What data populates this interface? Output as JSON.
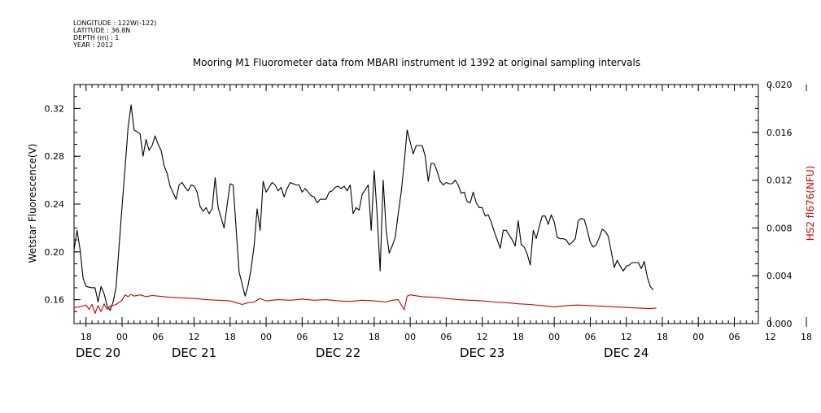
{
  "meta_lines": [
    "LONGITUDE : 122W(-122)",
    "LATITUDE : 36.8N",
    "DEPTH (m) : 1",
    "YEAR : 2012"
  ],
  "chart_data": {
    "type": "line",
    "title": "Mooring M1 Fluorometer data from MBARI instrument id 1392 at original sampling intervals",
    "xlabel": "",
    "x_range_hours": [
      -8,
      106
    ],
    "x_ticks": [
      {
        "h": -6,
        "label": "18"
      },
      {
        "h": 0,
        "label": "00"
      },
      {
        "h": 6,
        "label": "06"
      },
      {
        "h": 12,
        "label": "12"
      },
      {
        "h": 18,
        "label": "18"
      },
      {
        "h": 24,
        "label": "00"
      },
      {
        "h": 30,
        "label": "06"
      },
      {
        "h": 36,
        "label": "12"
      },
      {
        "h": 42,
        "label": "18"
      },
      {
        "h": 48,
        "label": "00"
      },
      {
        "h": 54,
        "label": "06"
      },
      {
        "h": 60,
        "label": "12"
      },
      {
        "h": 66,
        "label": "18"
      },
      {
        "h": 72,
        "label": "00"
      },
      {
        "h": 78,
        "label": "06"
      },
      {
        "h": 84,
        "label": "12"
      },
      {
        "h": 90,
        "label": "18"
      },
      {
        "h": 96,
        "label": "00"
      },
      {
        "h": 102,
        "label": "06"
      },
      {
        "h": 108,
        "label": "12"
      },
      {
        "h": 114,
        "label": "18"
      }
    ],
    "date_labels": [
      {
        "h": -4,
        "label": "DEC 20"
      },
      {
        "h": 12,
        "label": "DEC 21"
      },
      {
        "h": 36,
        "label": "DEC 22"
      },
      {
        "h": 60,
        "label": "DEC 23"
      },
      {
        "h": 84,
        "label": "DEC 24"
      }
    ],
    "y_left": {
      "label": "Wetstar Fluorescence(V)",
      "range": [
        0.14,
        0.34
      ],
      "ticks": [
        0.16,
        0.2,
        0.24,
        0.28,
        0.32
      ],
      "tick_labels": [
        "0.16",
        "0.20",
        "0.24",
        "0.28",
        "0.32"
      ]
    },
    "y_right": {
      "label": "HS2 fl676(NFU)",
      "range": [
        0.0,
        0.02
      ],
      "ticks": [
        0.0,
        0.004,
        0.008,
        0.012,
        0.016,
        0.02
      ],
      "tick_labels": [
        "0.000",
        "0.004",
        "0.008",
        "0.012",
        "0.016",
        "0.020"
      ],
      "color": "#d00000"
    },
    "series": [
      {
        "axis": "left",
        "color": "#000000",
        "points": [
          [
            -8,
            0.202
          ],
          [
            -7.5,
            0.218
          ],
          [
            -7,
            0.202
          ],
          [
            -6.5,
            0.178
          ],
          [
            -6,
            0.171
          ],
          [
            -5,
            0.17
          ],
          [
            -4.5,
            0.17
          ],
          [
            -4,
            0.158
          ],
          [
            -3.5,
            0.171
          ],
          [
            -3,
            0.165
          ],
          [
            -2.5,
            0.155
          ],
          [
            -2,
            0.151
          ],
          [
            -1.5,
            0.158
          ],
          [
            -1,
            0.17
          ],
          [
            0,
            0.238
          ],
          [
            0.5,
            0.27
          ],
          [
            1,
            0.304
          ],
          [
            1.5,
            0.323
          ],
          [
            2,
            0.302
          ],
          [
            3,
            0.299
          ],
          [
            3.5,
            0.28
          ],
          [
            4,
            0.294
          ],
          [
            4.5,
            0.285
          ],
          [
            5,
            0.289
          ],
          [
            5.5,
            0.297
          ],
          [
            6,
            0.29
          ],
          [
            6.5,
            0.285
          ],
          [
            7,
            0.272
          ],
          [
            7.5,
            0.266
          ],
          [
            8,
            0.255
          ],
          [
            9,
            0.244
          ],
          [
            9.5,
            0.256
          ],
          [
            10,
            0.258
          ],
          [
            10.5,
            0.254
          ],
          [
            11,
            0.251
          ],
          [
            11.5,
            0.256
          ],
          [
            12,
            0.255
          ],
          [
            12.5,
            0.25
          ],
          [
            13,
            0.238
          ],
          [
            13.5,
            0.234
          ],
          [
            14,
            0.237
          ],
          [
            14.5,
            0.232
          ],
          [
            15,
            0.236
          ],
          [
            15.5,
            0.262
          ],
          [
            16,
            0.237
          ],
          [
            17,
            0.22
          ],
          [
            17.5,
            0.239
          ],
          [
            18,
            0.257
          ],
          [
            18.5,
            0.256
          ],
          [
            19.5,
            0.183
          ],
          [
            20.5,
            0.163
          ],
          [
            21,
            0.172
          ],
          [
            21.5,
            0.186
          ],
          [
            22,
            0.205
          ],
          [
            22.5,
            0.236
          ],
          [
            23,
            0.218
          ],
          [
            23.5,
            0.259
          ],
          [
            24,
            0.25
          ],
          [
            25,
            0.258
          ],
          [
            25.5,
            0.256
          ],
          [
            26,
            0.251
          ],
          [
            26.5,
            0.254
          ],
          [
            27,
            0.246
          ],
          [
            27.5,
            0.253
          ],
          [
            28,
            0.258
          ],
          [
            29,
            0.256
          ],
          [
            29.5,
            0.256
          ],
          [
            30,
            0.25
          ],
          [
            30.5,
            0.253
          ],
          [
            31,
            0.25
          ],
          [
            31.5,
            0.247
          ],
          [
            32,
            0.246
          ],
          [
            32.5,
            0.241
          ],
          [
            33,
            0.244
          ],
          [
            33.5,
            0.244
          ],
          [
            34,
            0.244
          ],
          [
            34.5,
            0.25
          ],
          [
            35,
            0.251
          ],
          [
            35.5,
            0.254
          ],
          [
            36,
            0.255
          ],
          [
            36.5,
            0.253
          ],
          [
            37,
            0.255
          ],
          [
            37.5,
            0.251
          ],
          [
            38,
            0.256
          ],
          [
            38.5,
            0.232
          ],
          [
            39,
            0.237
          ],
          [
            39.5,
            0.235
          ],
          [
            40,
            0.248
          ],
          [
            40.5,
            0.252
          ],
          [
            41,
            0.256
          ],
          [
            41.5,
            0.218
          ],
          [
            42,
            0.268
          ],
          [
            42.5,
            0.231
          ],
          [
            43,
            0.184
          ],
          [
            43.5,
            0.26
          ],
          [
            44,
            0.218
          ],
          [
            44.5,
            0.199
          ],
          [
            45,
            0.205
          ],
          [
            45.5,
            0.212
          ],
          [
            46,
            0.232
          ],
          [
            46.5,
            0.25
          ],
          [
            47,
            0.274
          ],
          [
            47.5,
            0.302
          ],
          [
            48,
            0.292
          ],
          [
            48.5,
            0.282
          ],
          [
            49,
            0.289
          ],
          [
            49.5,
            0.289
          ],
          [
            50,
            0.289
          ],
          [
            50.5,
            0.28
          ],
          [
            51,
            0.259
          ],
          [
            51.5,
            0.274
          ],
          [
            52,
            0.274
          ],
          [
            52.5,
            0.267
          ],
          [
            53,
            0.259
          ],
          [
            53.5,
            0.256
          ],
          [
            54,
            0.258
          ],
          [
            54.5,
            0.257
          ],
          [
            55,
            0.257
          ],
          [
            55.5,
            0.26
          ],
          [
            56,
            0.256
          ],
          [
            56.5,
            0.249
          ],
          [
            57,
            0.25
          ],
          [
            57.5,
            0.242
          ],
          [
            58,
            0.241
          ],
          [
            58.5,
            0.25
          ],
          [
            59,
            0.241
          ],
          [
            59.5,
            0.237
          ],
          [
            60,
            0.237
          ],
          [
            60.5,
            0.23
          ],
          [
            61,
            0.231
          ],
          [
            61.5,
            0.225
          ],
          [
            62,
            0.217
          ],
          [
            62.5,
            0.21
          ],
          [
            63,
            0.203
          ],
          [
            63.5,
            0.218
          ],
          [
            64,
            0.218
          ],
          [
            65,
            0.21
          ],
          [
            65.5,
            0.205
          ],
          [
            66,
            0.226
          ],
          [
            66.5,
            0.206
          ],
          [
            67,
            0.204
          ],
          [
            67.5,
            0.198
          ],
          [
            68,
            0.189
          ],
          [
            68.5,
            0.218
          ],
          [
            69,
            0.211
          ],
          [
            69.5,
            0.221
          ],
          [
            70,
            0.23
          ],
          [
            70.5,
            0.23
          ],
          [
            71,
            0.223
          ],
          [
            71.5,
            0.231
          ],
          [
            72,
            0.225
          ],
          [
            72.5,
            0.212
          ],
          [
            73,
            0.211
          ],
          [
            73.5,
            0.211
          ],
          [
            74,
            0.21
          ],
          [
            74.5,
            0.206
          ],
          [
            75,
            0.208
          ],
          [
            75.5,
            0.211
          ],
          [
            76,
            0.226
          ],
          [
            76.5,
            0.228
          ],
          [
            77,
            0.227
          ],
          [
            77.5,
            0.218
          ],
          [
            78,
            0.208
          ],
          [
            78.5,
            0.204
          ],
          [
            79,
            0.206
          ],
          [
            79.5,
            0.212
          ],
          [
            80,
            0.219
          ],
          [
            80.5,
            0.217
          ],
          [
            81,
            0.213
          ],
          [
            81.5,
            0.2
          ],
          [
            82,
            0.187
          ],
          [
            82.5,
            0.193
          ],
          [
            83,
            0.188
          ],
          [
            83.5,
            0.184
          ],
          [
            84,
            0.188
          ],
          [
            84.5,
            0.189
          ],
          [
            85,
            0.191
          ],
          [
            85.5,
            0.191
          ],
          [
            86,
            0.191
          ],
          [
            86.5,
            0.186
          ],
          [
            87,
            0.192
          ],
          [
            87.5,
            0.179
          ],
          [
            88,
            0.171
          ],
          [
            88.5,
            0.168
          ]
        ]
      },
      {
        "axis": "right",
        "color": "#d00000",
        "points": [
          [
            -8,
            0.00135
          ],
          [
            -7,
            0.0014
          ],
          [
            -6,
            0.00155
          ],
          [
            -5.5,
            0.0012
          ],
          [
            -5,
            0.0016
          ],
          [
            -4.5,
            0.00085
          ],
          [
            -4,
            0.0015
          ],
          [
            -3.5,
            0.001
          ],
          [
            -3,
            0.00165
          ],
          [
            -2.5,
            0.0012
          ],
          [
            -2,
            0.00145
          ],
          [
            -1,
            0.0016
          ],
          [
            0,
            0.00195
          ],
          [
            0.5,
            0.0024
          ],
          [
            1,
            0.00225
          ],
          [
            1.5,
            0.00245
          ],
          [
            2,
            0.0023
          ],
          [
            3,
            0.0024
          ],
          [
            4,
            0.00225
          ],
          [
            5,
            0.00235
          ],
          [
            6,
            0.0023
          ],
          [
            8,
            0.0022
          ],
          [
            10,
            0.00215
          ],
          [
            12,
            0.0021
          ],
          [
            14,
            0.002
          ],
          [
            16,
            0.00195
          ],
          [
            18,
            0.0019
          ],
          [
            19,
            0.00175
          ],
          [
            20,
            0.0016
          ],
          [
            21,
            0.00175
          ],
          [
            22,
            0.0018
          ],
          [
            23,
            0.0021
          ],
          [
            24,
            0.0019
          ],
          [
            26,
            0.002
          ],
          [
            28,
            0.00195
          ],
          [
            30,
            0.00205
          ],
          [
            32,
            0.00195
          ],
          [
            34,
            0.002
          ],
          [
            36,
            0.0019
          ],
          [
            38,
            0.00185
          ],
          [
            40,
            0.00195
          ],
          [
            42,
            0.0019
          ],
          [
            44,
            0.0018
          ],
          [
            45,
            0.00195
          ],
          [
            46,
            0.002
          ],
          [
            47,
            0.00115
          ],
          [
            47.5,
            0.0023
          ],
          [
            48,
            0.0024
          ],
          [
            50,
            0.00225
          ],
          [
            52,
            0.0022
          ],
          [
            54,
            0.0021
          ],
          [
            56,
            0.002
          ],
          [
            58,
            0.00195
          ],
          [
            60,
            0.0019
          ],
          [
            62,
            0.0018
          ],
          [
            64,
            0.00175
          ],
          [
            66,
            0.00165
          ],
          [
            68,
            0.0016
          ],
          [
            70,
            0.0015
          ],
          [
            72,
            0.0014
          ],
          [
            74,
            0.0015
          ],
          [
            76,
            0.00155
          ],
          [
            78,
            0.0015
          ],
          [
            80,
            0.00145
          ],
          [
            82,
            0.0014
          ],
          [
            84,
            0.00135
          ],
          [
            86,
            0.0013
          ],
          [
            88,
            0.00125
          ],
          [
            89,
            0.0013
          ]
        ]
      }
    ]
  }
}
